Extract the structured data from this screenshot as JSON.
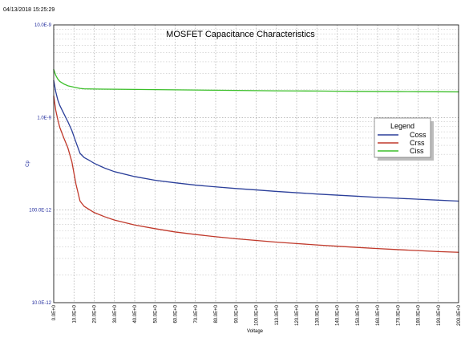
{
  "timestamp": "04/13/2018 15:25:29",
  "chart_data": {
    "type": "line",
    "title": "MOSFET Capacitance Characteristics",
    "xlabel": "Voltage",
    "ylabel": "Cp",
    "x_scale": "linear",
    "y_scale": "log",
    "xlim": [
      0,
      200
    ],
    "ylim": [
      1e-11,
      1e-08
    ],
    "grid": true,
    "legend": {
      "title": "Legend",
      "placement": "right"
    },
    "xticks": [
      {
        "value": 0,
        "label": "0.0E+0"
      },
      {
        "value": 10,
        "label": "10.0E+0"
      },
      {
        "value": 20,
        "label": "20.0E+0"
      },
      {
        "value": 30,
        "label": "30.0E+0"
      },
      {
        "value": 40,
        "label": "40.0E+0"
      },
      {
        "value": 50,
        "label": "50.0E+0"
      },
      {
        "value": 60,
        "label": "60.0E+0"
      },
      {
        "value": 70,
        "label": "70.0E+0"
      },
      {
        "value": 80,
        "label": "80.0E+0"
      },
      {
        "value": 90,
        "label": "90.0E+0"
      },
      {
        "value": 100,
        "label": "100.0E+0"
      },
      {
        "value": 110,
        "label": "110.0E+0"
      },
      {
        "value": 120,
        "label": "120.0E+0"
      },
      {
        "value": 130,
        "label": "130.0E+0"
      },
      {
        "value": 140,
        "label": "140.0E+0"
      },
      {
        "value": 150,
        "label": "150.0E+0"
      },
      {
        "value": 160,
        "label": "160.0E+0"
      },
      {
        "value": 170,
        "label": "170.0E+0"
      },
      {
        "value": 180,
        "label": "180.0E+0"
      },
      {
        "value": 190,
        "label": "190.0E+0"
      },
      {
        "value": 200,
        "label": "200.0E+0"
      }
    ],
    "yticks": [
      {
        "value": 1e-08,
        "label": "10.0E-9"
      },
      {
        "value": 1e-09,
        "label": "1.0E-9"
      },
      {
        "value": 1e-10,
        "label": "100.0E-12"
      },
      {
        "value": 1e-11,
        "label": "10.0E-12"
      }
    ],
    "series": [
      {
        "name": "Coss",
        "color": "#2b3f9a",
        "x": [
          0,
          1,
          2,
          3,
          5,
          7,
          9,
          11,
          13,
          15,
          18,
          20,
          25,
          30,
          40,
          50,
          60,
          70,
          80,
          90,
          100,
          110,
          120,
          130,
          140,
          150,
          160,
          170,
          180,
          190,
          200
        ],
        "y": [
          2.5e-09,
          1.9e-09,
          1.55e-09,
          1.35e-09,
          1.1e-09,
          9e-10,
          7.2e-10,
          5.4e-10,
          4.1e-10,
          3.7e-10,
          3.4e-10,
          3.2e-10,
          2.85e-10,
          2.6e-10,
          2.3e-10,
          2.1e-10,
          1.97e-10,
          1.86e-10,
          1.78e-10,
          1.71e-10,
          1.65e-10,
          1.59e-10,
          1.54e-10,
          1.49e-10,
          1.45e-10,
          1.41e-10,
          1.37e-10,
          1.34e-10,
          1.31e-10,
          1.28e-10,
          1.25e-10
        ]
      },
      {
        "name": "Crss",
        "color": "#c0392b",
        "x": [
          0,
          1,
          2,
          3,
          5,
          7,
          9,
          11,
          13,
          15,
          18,
          20,
          25,
          30,
          40,
          50,
          60,
          70,
          80,
          90,
          100,
          110,
          120,
          130,
          140,
          150,
          160,
          170,
          180,
          190,
          200
        ],
        "y": [
          1.7e-09,
          1.2e-09,
          9.5e-10,
          7.8e-10,
          6e-10,
          4.7e-10,
          3.3e-10,
          1.9e-10,
          1.25e-10,
          1.1e-10,
          1e-10,
          9.4e-11,
          8.5e-11,
          7.8e-11,
          6.9e-11,
          6.3e-11,
          5.8e-11,
          5.45e-11,
          5.15e-11,
          4.9e-11,
          4.7e-11,
          4.5e-11,
          4.35e-11,
          4.2e-11,
          4.07e-11,
          3.95e-11,
          3.84e-11,
          3.74e-11,
          3.65e-11,
          3.56e-11,
          3.5e-11
        ]
      },
      {
        "name": "Ciss",
        "color": "#3cbf2a",
        "x": [
          0,
          1,
          2,
          3,
          5,
          7,
          9,
          11,
          13,
          15,
          20,
          30,
          40,
          50,
          60,
          70,
          80,
          90,
          100,
          110,
          120,
          130,
          140,
          150,
          160,
          170,
          180,
          190,
          200
        ],
        "y": [
          3.3e-09,
          2.85e-09,
          2.6e-09,
          2.45e-09,
          2.3e-09,
          2.2e-09,
          2.15e-09,
          2.1e-09,
          2.06e-09,
          2.04e-09,
          2.03e-09,
          2.02e-09,
          2.01e-09,
          2e-09,
          1.99e-09,
          1.98e-09,
          1.97e-09,
          1.96e-09,
          1.95e-09,
          1.94e-09,
          1.935e-09,
          1.93e-09,
          1.92e-09,
          1.915e-09,
          1.91e-09,
          1.905e-09,
          1.9e-09,
          1.895e-09,
          1.89e-09
        ]
      }
    ]
  }
}
